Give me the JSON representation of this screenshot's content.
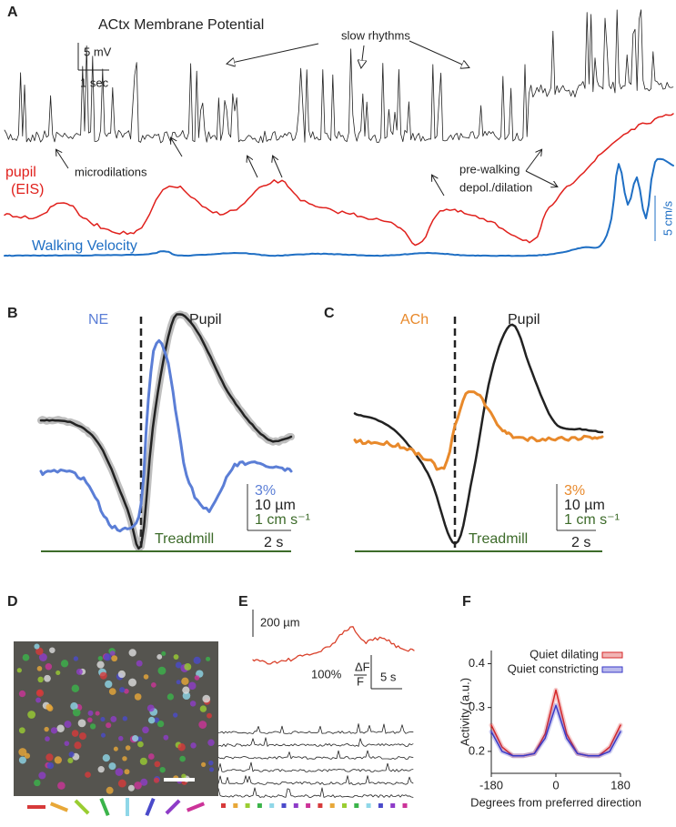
{
  "panels": {
    "A": {
      "label": "A",
      "title": "ACtx Membrane Potential",
      "scale_v": "5 mV",
      "scale_t": "1 sec",
      "slow": "slow rhythms",
      "micro": "microdilations",
      "pupil": "pupil",
      "eis": "(EIS)",
      "pre1": "pre-walking",
      "pre2": "depol./dilation",
      "walk": "Walking Velocity",
      "vel": "5 cm/s"
    },
    "B": {
      "label": "B",
      "trace": "NE",
      "pupil": "Pupil",
      "s1": "3%",
      "s2": "10 µm",
      "s3": "1 cm s⁻¹",
      "tread": "Treadmill",
      "t": "2 s"
    },
    "C": {
      "label": "C",
      "trace": "ACh",
      "pupil": "Pupil",
      "s1": "3%",
      "s2": "10 µm",
      "s3": "1 cm s⁻¹",
      "tread": "Treadmill",
      "t": "2 s"
    },
    "D": {
      "label": "D"
    },
    "E": {
      "label": "E",
      "scale": "200 µm",
      "pct": "100%",
      "num": "ΔF",
      "den": "F",
      "t": "5 s"
    }
  },
  "chart_data": {
    "type": "line",
    "title": "F",
    "x": [
      -180,
      -150,
      -120,
      -90,
      -60,
      -30,
      0,
      30,
      60,
      90,
      120,
      150,
      180
    ],
    "series": [
      {
        "name": "Quiet dilating",
        "color": "#d62728",
        "values": [
          0.26,
          0.21,
          0.19,
          0.19,
          0.195,
          0.24,
          0.34,
          0.24,
          0.195,
          0.19,
          0.19,
          0.21,
          0.26
        ]
      },
      {
        "name": "Quiet constricting",
        "color": "#3a3ac8",
        "values": [
          0.245,
          0.2,
          0.19,
          0.19,
          0.195,
          0.23,
          0.305,
          0.23,
          0.195,
          0.19,
          0.19,
          0.2,
          0.245
        ]
      }
    ],
    "x_label": "Degrees from preferred direction",
    "y_label": "Activity (a.u.)",
    "xlim": [
      -180,
      180
    ],
    "ylim": [
      0.15,
      0.43
    ],
    "xticks": [
      -180,
      0,
      180
    ],
    "yticks": [
      0.2,
      0.3,
      0.4
    ]
  }
}
